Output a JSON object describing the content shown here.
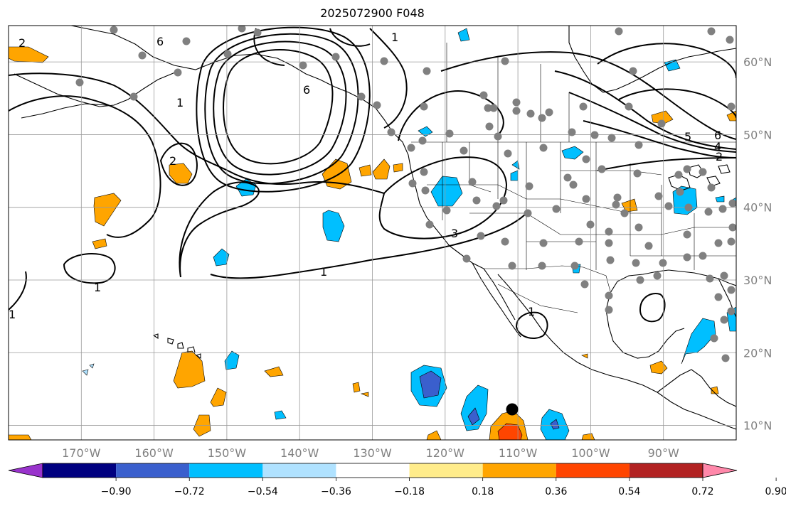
{
  "title": "2025072900 F048",
  "map": {
    "lon_range": [
      -180,
      -80
    ],
    "lat_range": [
      8,
      65
    ],
    "lon_ticks": [
      -170,
      -160,
      -150,
      -140,
      -130,
      -120,
      -110,
      -100,
      -90
    ],
    "lon_tick_labels": [
      "170°W",
      "160°W",
      "150°W",
      "140°W",
      "130°W",
      "120°W",
      "110°W",
      "100°W",
      "90°W"
    ],
    "lat_ticks": [
      10,
      20,
      30,
      40,
      50,
      60
    ],
    "lat_tick_labels": [
      "10°N",
      "20°N",
      "30°N",
      "40°N",
      "50°N",
      "60°N"
    ],
    "grid": true,
    "contour_color": "#000000",
    "contour_labels": [
      "2",
      "6",
      "6",
      "1",
      "1",
      "2",
      "1",
      "3",
      "1",
      "1",
      "1",
      "5",
      "6",
      "4",
      "2"
    ],
    "station_marker_color": "#808080",
    "highlight_marker_color": "#000000"
  },
  "colorbar": {
    "ticks": [
      "−0.90",
      "−0.72",
      "−0.54",
      "−0.36",
      "−0.18",
      "0.18",
      "0.36",
      "0.54",
      "0.72",
      "0.90"
    ],
    "colors": [
      "#9933cc",
      "#000080",
      "#3a5fcd",
      "#00bfff",
      "#b0e2ff",
      "#ffffff",
      "#ffec8b",
      "#ffa500",
      "#ff4500",
      "#b22222",
      "#ff88aa"
    ]
  },
  "legend_colors": {
    "neg_strong": "#3a5fcd",
    "neg_mid": "#00bfff",
    "neg_weak": "#b0e2ff",
    "pos_weak": "#ffec8b",
    "pos_mid": "#ffa500",
    "pos_strong": "#ff4500"
  }
}
